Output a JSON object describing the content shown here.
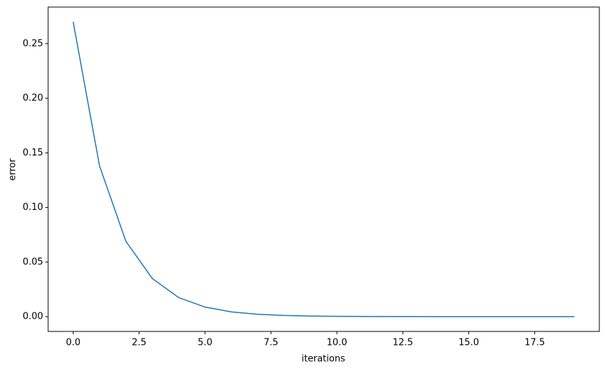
{
  "chart_data": {
    "type": "line",
    "xlabel": "iterations",
    "ylabel": "error",
    "x": [
      0,
      1,
      2,
      3,
      4,
      5,
      6,
      7,
      8,
      9,
      10,
      11,
      12,
      13,
      14,
      15,
      16,
      17,
      18,
      19
    ],
    "series": [
      {
        "color": "#1f77b4",
        "values": [
          0.27,
          0.138,
          0.069,
          0.035,
          0.0175,
          0.0088,
          0.0044,
          0.0022,
          0.0011,
          0.0006,
          0.0003,
          0.0002,
          0.0001,
          5e-05,
          3e-05,
          1e-05,
          1e-05,
          0,
          0,
          0
        ]
      }
    ],
    "xlim": [
      -0.95,
      19.95
    ],
    "xticks": [
      {
        "value": 0,
        "label": "0.0"
      },
      2.5,
      {
        "value": 5,
        "label": "5.0"
      },
      7.5,
      {
        "value": 10,
        "label": "10.0"
      },
      12.5,
      {
        "value": 15,
        "label": "15.0"
      },
      17.5
    ],
    "ylim": [
      -0.0135,
      0.2835
    ],
    "yticks": [
      {
        "value": 0,
        "label": "0.00"
      },
      0.05,
      {
        "value": 0.1,
        "label": "0.10"
      },
      0.15,
      {
        "value": 0.2,
        "label": "0.20"
      },
      0.25
    ]
  }
}
